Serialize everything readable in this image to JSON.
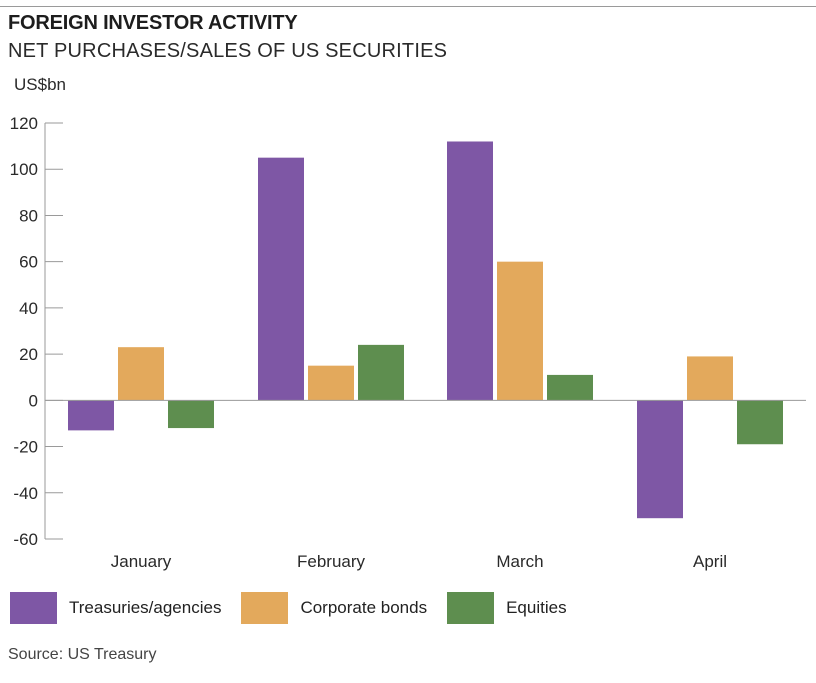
{
  "chart_data": {
    "type": "bar",
    "title": "FOREIGN INVESTOR ACTIVITY",
    "subtitle": "NET PURCHASES/SALES OF US SECURITIES",
    "ylabel": "US$bn",
    "xlabel": "",
    "ylim": [
      -60,
      120
    ],
    "yticks": [
      120,
      100,
      80,
      60,
      40,
      20,
      0,
      -20,
      -40,
      -60
    ],
    "categories": [
      "January",
      "February",
      "March",
      "April"
    ],
    "series": [
      {
        "name": "Treasuries/agencies",
        "color": "#7e57a5",
        "values": [
          -13,
          105,
          112,
          -51
        ]
      },
      {
        "name": "Corporate bonds",
        "color": "#e3a95c",
        "values": [
          23,
          15,
          60,
          19
        ]
      },
      {
        "name": "Equities",
        "color": "#5e8e4f",
        "values": [
          -12,
          24,
          11,
          -19
        ]
      }
    ],
    "legend_position": "bottom",
    "source": "Source: US Treasury"
  }
}
